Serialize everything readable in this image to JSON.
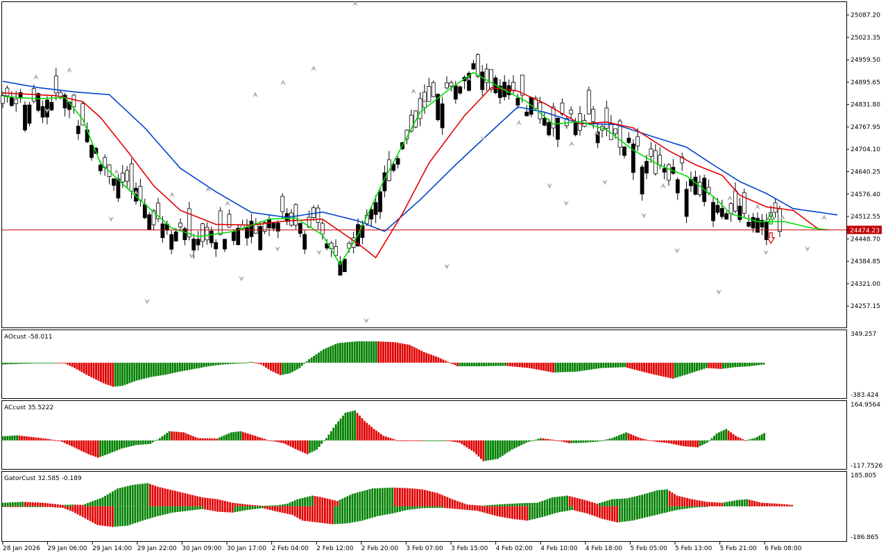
{
  "chart_data": [
    {
      "type": "candlestick",
      "panel": "main",
      "ylim": [
        24200,
        25120
      ],
      "price_ticks": [
        "25087.20",
        "25023.35",
        "24959.50",
        "24895.65",
        "24831.80",
        "24767.95",
        "24704.10",
        "24640.25",
        "24576.40",
        "24512.55",
        "24448.70",
        "24384.85",
        "24321.00",
        "24257.15"
      ],
      "current_price": "24474.23",
      "current_price_value": 24474.23,
      "colors": {
        "up_fill": "#ffffff",
        "down_fill": "#000000",
        "ma_fast": "#00dd00",
        "ma_mid": "#e00000",
        "ma_slow": "#0044cc",
        "price_line": "#c00000",
        "price_tag": "#c00000",
        "fractal": "#b0b0b0"
      },
      "candles_ohlc": [],
      "ma_fast_keypoints": [
        [
          0,
          24855
        ],
        [
          8,
          24848
        ],
        [
          14,
          24852
        ],
        [
          18,
          24790
        ],
        [
          22,
          24665
        ],
        [
          30,
          24570
        ],
        [
          38,
          24480
        ],
        [
          44,
          24455
        ],
        [
          52,
          24470
        ],
        [
          60,
          24505
        ],
        [
          66,
          24508
        ],
        [
          72,
          24460
        ],
        [
          76,
          24375
        ],
        [
          80,
          24460
        ],
        [
          86,
          24620
        ],
        [
          94,
          24810
        ],
        [
          100,
          24870
        ],
        [
          106,
          24923
        ],
        [
          112,
          24880
        ],
        [
          118,
          24840
        ],
        [
          124,
          24776
        ],
        [
          130,
          24783
        ],
        [
          136,
          24760
        ],
        [
          142,
          24702
        ],
        [
          148,
          24658
        ],
        [
          154,
          24628
        ],
        [
          160,
          24570
        ],
        [
          164,
          24520
        ],
        [
          170,
          24498
        ],
        [
          176,
          24498
        ],
        [
          182,
          24480
        ],
        [
          186,
          24474
        ]
      ],
      "ma_mid_keypoints": [
        [
          0,
          24865
        ],
        [
          12,
          24857
        ],
        [
          18,
          24840
        ],
        [
          22,
          24795
        ],
        [
          28,
          24700
        ],
        [
          34,
          24600
        ],
        [
          40,
          24530
        ],
        [
          48,
          24490
        ],
        [
          56,
          24488
        ],
        [
          64,
          24500
        ],
        [
          72,
          24505
        ],
        [
          80,
          24435
        ],
        [
          84,
          24395
        ],
        [
          90,
          24520
        ],
        [
          96,
          24665
        ],
        [
          104,
          24800
        ],
        [
          110,
          24880
        ],
        [
          116,
          24870
        ],
        [
          122,
          24835
        ],
        [
          130,
          24777
        ],
        [
          136,
          24782
        ],
        [
          142,
          24765
        ],
        [
          150,
          24700
        ],
        [
          156,
          24660
        ],
        [
          162,
          24630
        ],
        [
          166,
          24573
        ],
        [
          172,
          24540
        ],
        [
          178,
          24530
        ],
        [
          184,
          24474
        ]
      ],
      "ma_slow_keypoints": [
        [
          0,
          24898
        ],
        [
          8,
          24880
        ],
        [
          16,
          24868
        ],
        [
          24,
          24860
        ],
        [
          32,
          24765
        ],
        [
          40,
          24650
        ],
        [
          48,
          24583
        ],
        [
          56,
          24524
        ],
        [
          64,
          24510
        ],
        [
          72,
          24525
        ],
        [
          80,
          24500
        ],
        [
          86,
          24470
        ],
        [
          94,
          24560
        ],
        [
          102,
          24660
        ],
        [
          110,
          24755
        ],
        [
          116,
          24825
        ],
        [
          122,
          24810
        ],
        [
          130,
          24778
        ],
        [
          138,
          24775
        ],
        [
          146,
          24742
        ],
        [
          154,
          24710
        ],
        [
          160,
          24660
        ],
        [
          166,
          24612
        ],
        [
          172,
          24578
        ],
        [
          178,
          24535
        ],
        [
          188,
          24517
        ]
      ],
      "fractals_up": [
        [
          12,
          24910
        ],
        [
          24,
          24930
        ],
        [
          41,
          24640
        ],
        [
          48,
          24580
        ],
        [
          61,
          24575
        ],
        [
          74,
          24590
        ],
        [
          81,
          24550
        ],
        [
          91,
          24860
        ],
        [
          101,
          24895
        ],
        [
          112,
          24935
        ],
        [
          127,
          25120
        ],
        [
          148,
          24870
        ],
        [
          152,
          24840
        ],
        [
          168,
          24905
        ],
        [
          186,
          24780
        ],
        [
          205,
          24720
        ],
        [
          214,
          24750
        ],
        [
          238,
          24600
        ],
        [
          262,
          24565
        ],
        [
          272,
          24540
        ],
        [
          281,
          24510
        ],
        [
          296,
          24510
        ]
      ],
      "fractals_down": [
        [
          16,
          24815
        ],
        [
          39,
          24505
        ],
        [
          52,
          24270
        ],
        [
          68,
          24400
        ],
        [
          86,
          24335
        ],
        [
          99,
          24420
        ],
        [
          114,
          24410
        ],
        [
          131,
          24215
        ],
        [
          160,
          24370
        ],
        [
          173,
          24735
        ],
        [
          197,
          24600
        ],
        [
          203,
          24550
        ],
        [
          217,
          24610
        ],
        [
          231,
          24515
        ],
        [
          243,
          24415
        ],
        [
          258,
          24297
        ],
        [
          275,
          24410
        ],
        [
          290,
          24420
        ]
      ],
      "signal_arrows": [
        {
          "dir": "up",
          "value": 24505,
          "color": "#00aa00"
        },
        {
          "dir": "down",
          "value": 24452,
          "color": "#e00000"
        }
      ],
      "x_tick_labels": [
        "28 Jan 2026",
        "29 Jan 06:00",
        "29 Jan 14:00",
        "29 Jan 22:00",
        "30 Jan 09:00",
        "30 Jan 17:00",
        "2 Feb 04:00",
        "2 Feb 12:00",
        "2 Feb 20:00",
        "3 Feb 07:00",
        "3 Feb 15:00",
        "4 Feb 02:00",
        "4 Feb 10:00",
        "4 Feb 18:00",
        "5 Feb 05:00",
        "5 Feb 13:00",
        "5 Feb 21:00",
        "6 Feb 08:00"
      ]
    },
    {
      "type": "histogram",
      "panel": "AOcust",
      "label": "AOcust -58.011",
      "ylim": [
        -383.424,
        349.257
      ],
      "tick_labels": [
        "349.257",
        "-383.424"
      ],
      "up_color": "#008000",
      "down_color": "#e00000",
      "keypoints": [
        [
          0,
          -20
        ],
        [
          10,
          -10
        ],
        [
          16,
          -4
        ],
        [
          22,
          -1
        ],
        [
          26,
          -8
        ],
        [
          30,
          -60
        ],
        [
          36,
          -150
        ],
        [
          42,
          -230
        ],
        [
          46,
          -270
        ],
        [
          50,
          -260
        ],
        [
          56,
          -200
        ],
        [
          62,
          -160
        ],
        [
          68,
          -135
        ],
        [
          74,
          -100
        ],
        [
          80,
          -70
        ],
        [
          86,
          -40
        ],
        [
          92,
          -20
        ],
        [
          98,
          -10
        ],
        [
          104,
          10
        ],
        [
          108,
          -20
        ],
        [
          112,
          -90
        ],
        [
          116,
          -140
        ],
        [
          120,
          -120
        ],
        [
          124,
          -60
        ],
        [
          128,
          40
        ],
        [
          134,
          150
        ],
        [
          140,
          220
        ],
        [
          148,
          240
        ],
        [
          156,
          240
        ],
        [
          164,
          230
        ],
        [
          170,
          200
        ],
        [
          176,
          120
        ],
        [
          182,
          60
        ],
        [
          186,
          10
        ],
        [
          190,
          -40
        ],
        [
          200,
          -40
        ],
        [
          210,
          -35
        ],
        [
          220,
          -60
        ],
        [
          230,
          -110
        ],
        [
          240,
          -100
        ],
        [
          250,
          -60
        ],
        [
          260,
          -50
        ],
        [
          270,
          -120
        ],
        [
          280,
          -180
        ],
        [
          286,
          -130
        ],
        [
          294,
          -60
        ],
        [
          300,
          -70
        ],
        [
          306,
          -50
        ],
        [
          312,
          -40
        ],
        [
          318,
          -20
        ]
      ],
      "color_pattern": "down runs then up runs matching momentum"
    },
    {
      "type": "histogram",
      "panel": "ACcust",
      "label": "ACcust 35.5222",
      "ylim": [
        -117.7526,
        164.9564
      ],
      "tick_labels": [
        "164.9564",
        "-117.7526"
      ],
      "up_color": "#008000",
      "down_color": "#e00000",
      "keypoints": [
        [
          0,
          18
        ],
        [
          6,
          22
        ],
        [
          12,
          15
        ],
        [
          18,
          8
        ],
        [
          24,
          -2
        ],
        [
          30,
          -30
        ],
        [
          36,
          -60
        ],
        [
          40,
          -75
        ],
        [
          44,
          -60
        ],
        [
          50,
          -35
        ],
        [
          56,
          -20
        ],
        [
          62,
          -15
        ],
        [
          66,
          10
        ],
        [
          70,
          40
        ],
        [
          76,
          35
        ],
        [
          82,
          10
        ],
        [
          90,
          8
        ],
        [
          96,
          35
        ],
        [
          100,
          40
        ],
        [
          106,
          20
        ],
        [
          112,
          0
        ],
        [
          118,
          -12
        ],
        [
          124,
          -42
        ],
        [
          128,
          -60
        ],
        [
          132,
          -40
        ],
        [
          136,
          10
        ],
        [
          140,
          70
        ],
        [
          144,
          120
        ],
        [
          148,
          130
        ],
        [
          152,
          85
        ],
        [
          156,
          50
        ],
        [
          160,
          20
        ],
        [
          166,
          0
        ],
        [
          176,
          -2
        ],
        [
          186,
          0
        ],
        [
          192,
          -10
        ],
        [
          198,
          -50
        ],
        [
          202,
          -90
        ],
        [
          208,
          -80
        ],
        [
          214,
          -40
        ],
        [
          220,
          -10
        ],
        [
          226,
          10
        ],
        [
          232,
          2
        ],
        [
          238,
          -12
        ],
        [
          244,
          -10
        ],
        [
          250,
          -5
        ],
        [
          256,
          10
        ],
        [
          262,
          35
        ],
        [
          268,
          10
        ],
        [
          274,
          -5
        ],
        [
          280,
          -12
        ],
        [
          286,
          -25
        ],
        [
          292,
          -30
        ],
        [
          296,
          -10
        ],
        [
          300,
          30
        ],
        [
          304,
          50
        ],
        [
          308,
          20
        ],
        [
          312,
          0
        ],
        [
          316,
          10
        ],
        [
          320,
          32
        ]
      ]
    },
    {
      "type": "histogram",
      "panel": "GatorCust",
      "label": "GatorCust 32.585 -0.189",
      "ylim": [
        -186.865,
        185.805
      ],
      "tick_labels": [
        "185.805",
        "-186.865"
      ],
      "up_color": "#008000",
      "down_color": "#e00000",
      "upper_keypoints": [
        [
          0,
          20
        ],
        [
          8,
          25
        ],
        [
          16,
          20
        ],
        [
          24,
          8
        ],
        [
          28,
          10
        ],
        [
          32,
          8
        ],
        [
          40,
          50
        ],
        [
          46,
          100
        ],
        [
          52,
          120
        ],
        [
          58,
          130
        ],
        [
          62,
          110
        ],
        [
          68,
          90
        ],
        [
          74,
          70
        ],
        [
          80,
          50
        ],
        [
          86,
          40
        ],
        [
          92,
          20
        ],
        [
          98,
          10
        ],
        [
          104,
          3
        ],
        [
          110,
          6
        ],
        [
          114,
          15
        ],
        [
          118,
          40
        ],
        [
          124,
          60
        ],
        [
          128,
          50
        ],
        [
          134,
          30
        ],
        [
          140,
          70
        ],
        [
          148,
          100
        ],
        [
          156,
          105
        ],
        [
          162,
          102
        ],
        [
          168,
          95
        ],
        [
          174,
          75
        ],
        [
          180,
          40
        ],
        [
          186,
          10
        ],
        [
          192,
          4
        ],
        [
          200,
          12
        ],
        [
          208,
          18
        ],
        [
          214,
          20
        ],
        [
          220,
          50
        ],
        [
          226,
          60
        ],
        [
          232,
          40
        ],
        [
          238,
          15
        ],
        [
          244,
          40
        ],
        [
          250,
          45
        ],
        [
          256,
          65
        ],
        [
          262,
          90
        ],
        [
          266,
          95
        ],
        [
          270,
          60
        ],
        [
          276,
          40
        ],
        [
          282,
          25
        ],
        [
          288,
          20
        ],
        [
          294,
          35
        ],
        [
          298,
          40
        ],
        [
          304,
          20
        ],
        [
          310,
          15
        ],
        [
          316,
          8
        ]
      ],
      "lower_keypoints": [
        [
          0,
          -1
        ],
        [
          8,
          -3
        ],
        [
          16,
          -2
        ],
        [
          24,
          -8
        ],
        [
          28,
          -30
        ],
        [
          32,
          -60
        ],
        [
          38,
          -105
        ],
        [
          44,
          -115
        ],
        [
          50,
          -108
        ],
        [
          56,
          -80
        ],
        [
          62,
          -55
        ],
        [
          68,
          -35
        ],
        [
          74,
          -25
        ],
        [
          80,
          -15
        ],
        [
          86,
          -30
        ],
        [
          92,
          -35
        ],
        [
          98,
          -20
        ],
        [
          104,
          -10
        ],
        [
          110,
          -30
        ],
        [
          116,
          -48
        ],
        [
          120,
          -80
        ],
        [
          126,
          -90
        ],
        [
          132,
          -100
        ],
        [
          138,
          -95
        ],
        [
          144,
          -80
        ],
        [
          150,
          -55
        ],
        [
          156,
          -40
        ],
        [
          162,
          -20
        ],
        [
          168,
          -10
        ],
        [
          176,
          -8
        ],
        [
          182,
          -15
        ],
        [
          190,
          -25
        ],
        [
          198,
          -55
        ],
        [
          204,
          -70
        ],
        [
          210,
          -80
        ],
        [
          216,
          -60
        ],
        [
          222,
          -35
        ],
        [
          228,
          -20
        ],
        [
          234,
          -40
        ],
        [
          240,
          -70
        ],
        [
          246,
          -90
        ],
        [
          252,
          -80
        ],
        [
          258,
          -60
        ],
        [
          264,
          -40
        ],
        [
          270,
          -20
        ],
        [
          276,
          -8
        ],
        [
          282,
          -2
        ]
      ]
    }
  ]
}
